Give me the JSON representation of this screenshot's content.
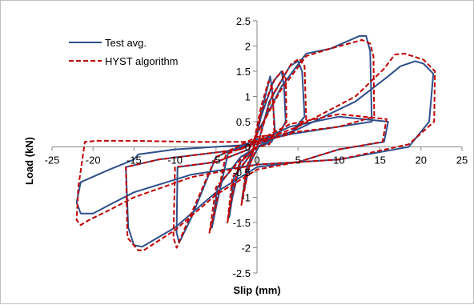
{
  "chart_data": {
    "type": "line",
    "title": "",
    "xlabel": "Slip (mm)",
    "ylabel": "Load (kN)",
    "xlim": [
      -25,
      25
    ],
    "ylim": [
      -2.5,
      2.5
    ],
    "x_ticks": [
      -25,
      -20,
      -15,
      -10,
      -5,
      0,
      5,
      10,
      15,
      20,
      25
    ],
    "y_ticks": [
      -2.5,
      -2,
      -1.5,
      -1,
      -0.5,
      0,
      0.5,
      1,
      1.5,
      2,
      2.5
    ],
    "grid": false,
    "legend_position": "top-left",
    "series": [
      {
        "name": "Test avg.",
        "color": "#2f4f8a",
        "dash": "solid",
        "loops": [
          [
            [
              -0.5,
              -0.1
            ],
            [
              -0.2,
              0.2
            ],
            [
              0.3,
              0.5
            ],
            [
              1.0,
              1.0
            ],
            [
              1.6,
              1.4
            ],
            [
              1.8,
              1.2
            ],
            [
              2.2,
              0.3
            ],
            [
              1.8,
              0.1
            ],
            [
              0.2,
              0.0
            ],
            [
              -0.8,
              -0.3
            ],
            [
              -1.5,
              -0.8
            ],
            [
              -1.8,
              -1.0
            ],
            [
              -1.2,
              -0.4
            ],
            [
              -0.5,
              -0.1
            ]
          ],
          [
            [
              -0.5,
              -0.1
            ],
            [
              0.5,
              0.6
            ],
            [
              2.0,
              1.3
            ],
            [
              3.0,
              1.5
            ],
            [
              3.3,
              1.2
            ],
            [
              3.5,
              0.5
            ],
            [
              2.5,
              0.2
            ],
            [
              0.0,
              0.0
            ],
            [
              -2.0,
              -0.3
            ],
            [
              -3.0,
              -1.0
            ],
            [
              -3.4,
              -1.4
            ],
            [
              -2.8,
              -0.6
            ],
            [
              -1.0,
              -0.2
            ],
            [
              -0.5,
              -0.1
            ]
          ],
          [
            [
              0.0,
              0.0
            ],
            [
              1.5,
              0.9
            ],
            [
              4.0,
              1.6
            ],
            [
              5.0,
              1.7
            ],
            [
              5.5,
              1.5
            ],
            [
              5.8,
              0.6
            ],
            [
              4.0,
              0.25
            ],
            [
              0.0,
              0.1
            ],
            [
              -3.5,
              -0.1
            ],
            [
              -5.0,
              -1.2
            ],
            [
              -5.5,
              -1.6
            ],
            [
              -4.8,
              -0.8
            ],
            [
              -2.0,
              -0.2
            ],
            [
              0.0,
              0.0
            ]
          ],
          [
            [
              -1.0,
              -0.05
            ],
            [
              3.0,
              1.2
            ],
            [
              6.0,
              1.85
            ],
            [
              9.0,
              1.95
            ],
            [
              12.5,
              2.2
            ],
            [
              13.3,
              2.2
            ],
            [
              13.8,
              1.9
            ],
            [
              14.0,
              0.5
            ],
            [
              10.0,
              0.4
            ],
            [
              0.0,
              0.15
            ],
            [
              -5.0,
              -0.2
            ],
            [
              -8.0,
              -1.4
            ],
            [
              -9.5,
              -1.9
            ],
            [
              -9.8,
              -1.7
            ],
            [
              -9.7,
              -0.4
            ],
            [
              -5.0,
              -0.3
            ],
            [
              -1.0,
              -0.05
            ]
          ],
          [
            [
              -2.0,
              -0.05
            ],
            [
              4.0,
              0.4
            ],
            [
              10.0,
              0.6
            ],
            [
              16.0,
              0.5
            ],
            [
              15.5,
              0.1
            ],
            [
              10.0,
              -0.05
            ],
            [
              5.0,
              -0.3
            ],
            [
              0.0,
              -0.4
            ],
            [
              -5.0,
              -0.9
            ],
            [
              -10.0,
              -1.6
            ],
            [
              -14.0,
              -1.98
            ],
            [
              -15.0,
              -1.95
            ],
            [
              -15.7,
              -1.6
            ],
            [
              -16.0,
              -0.4
            ],
            [
              -12.0,
              -0.25
            ],
            [
              -2.0,
              -0.05
            ]
          ],
          [
            [
              0.0,
              0.05
            ],
            [
              5.0,
              0.35
            ],
            [
              12.0,
              0.9
            ],
            [
              16.0,
              1.4
            ],
            [
              17.5,
              1.6
            ],
            [
              19.3,
              1.7
            ],
            [
              20.3,
              1.65
            ],
            [
              21.5,
              1.45
            ],
            [
              21.0,
              0.5
            ],
            [
              18.5,
              0.0
            ],
            [
              10.0,
              -0.25
            ],
            [
              0.0,
              -0.35
            ],
            [
              -8.0,
              -0.55
            ],
            [
              -15.0,
              -0.9
            ],
            [
              -18.0,
              -1.15
            ],
            [
              -20.0,
              -1.32
            ],
            [
              -21.5,
              -1.32
            ],
            [
              -22.0,
              -1.1
            ],
            [
              -21.5,
              -0.7
            ],
            [
              -18.0,
              -0.45
            ],
            [
              -15.0,
              -0.25
            ],
            [
              -14.5,
              -0.15
            ],
            [
              -10.0,
              -0.05
            ],
            [
              0.0,
              0.05
            ]
          ]
        ]
      },
      {
        "name": "HYST algorithm",
        "color": "#c00000",
        "dash": "dashed",
        "loops": [
          [
            [
              -0.6,
              -0.15
            ],
            [
              -0.2,
              0.25
            ],
            [
              0.5,
              0.8
            ],
            [
              1.4,
              1.3
            ],
            [
              1.9,
              1.15
            ],
            [
              2.1,
              0.3
            ],
            [
              1.5,
              0.05
            ],
            [
              0.0,
              0.0
            ],
            [
              -1.0,
              -0.4
            ],
            [
              -1.7,
              -1.0
            ],
            [
              -1.9,
              -1.15
            ],
            [
              -1.3,
              -0.4
            ],
            [
              -0.6,
              -0.15
            ]
          ],
          [
            [
              -0.5,
              -0.1
            ],
            [
              0.5,
              0.7
            ],
            [
              2.2,
              1.35
            ],
            [
              3.1,
              1.5
            ],
            [
              3.5,
              1.35
            ],
            [
              3.6,
              0.5
            ],
            [
              2.3,
              0.2
            ],
            [
              0.0,
              0.05
            ],
            [
              -2.2,
              -0.35
            ],
            [
              -3.2,
              -1.1
            ],
            [
              -3.6,
              -1.5
            ],
            [
              -3.0,
              -0.6
            ],
            [
              -1.0,
              -0.2
            ],
            [
              -0.5,
              -0.1
            ]
          ],
          [
            [
              0.0,
              0.0
            ],
            [
              1.8,
              1.0
            ],
            [
              4.2,
              1.65
            ],
            [
              5.2,
              1.75
            ],
            [
              5.8,
              1.6
            ],
            [
              6.0,
              0.55
            ],
            [
              4.0,
              0.25
            ],
            [
              0.0,
              0.1
            ],
            [
              -3.8,
              -0.15
            ],
            [
              -5.2,
              -1.3
            ],
            [
              -5.8,
              -1.7
            ],
            [
              -5.0,
              -0.8
            ],
            [
              -2.0,
              -0.25
            ],
            [
              0.0,
              0.0
            ]
          ],
          [
            [
              -1.0,
              -0.05
            ],
            [
              2.8,
              1.1
            ],
            [
              6.0,
              1.8
            ],
            [
              9.0,
              1.95
            ],
            [
              12.8,
              2.12
            ],
            [
              13.8,
              2.05
            ],
            [
              14.2,
              1.8
            ],
            [
              14.3,
              0.6
            ],
            [
              10.0,
              0.4
            ],
            [
              0.0,
              0.2
            ],
            [
              -5.0,
              -0.2
            ],
            [
              -8.5,
              -1.5
            ],
            [
              -9.8,
              -2.0
            ],
            [
              -10.2,
              -1.8
            ],
            [
              -10.0,
              -0.4
            ],
            [
              -5.0,
              -0.3
            ],
            [
              -1.0,
              -0.05
            ]
          ],
          [
            [
              -2.0,
              -0.05
            ],
            [
              4.0,
              0.45
            ],
            [
              10.0,
              0.65
            ],
            [
              15.8,
              0.55
            ],
            [
              15.3,
              0.1
            ],
            [
              10.0,
              -0.05
            ],
            [
              5.0,
              -0.3
            ],
            [
              0.0,
              -0.45
            ],
            [
              -5.0,
              -0.95
            ],
            [
              -10.0,
              -1.65
            ],
            [
              -13.8,
              -2.05
            ],
            [
              -14.5,
              -2.05
            ],
            [
              -15.8,
              -1.8
            ],
            [
              -16.0,
              -0.4
            ],
            [
              -12.0,
              -0.25
            ],
            [
              -2.0,
              -0.05
            ]
          ],
          [
            [
              0.0,
              0.1
            ],
            [
              5.0,
              0.4
            ],
            [
              12.0,
              1.0
            ],
            [
              15.5,
              1.55
            ],
            [
              16.8,
              1.83
            ],
            [
              18.0,
              1.85
            ],
            [
              20.3,
              1.73
            ],
            [
              21.7,
              1.5
            ],
            [
              21.6,
              0.5
            ],
            [
              18.5,
              0.05
            ],
            [
              10.0,
              -0.25
            ],
            [
              0.0,
              -0.35
            ],
            [
              -8.0,
              -0.6
            ],
            [
              -15.0,
              -1.0
            ],
            [
              -18.0,
              -1.25
            ],
            [
              -20.5,
              -1.45
            ],
            [
              -21.5,
              -1.55
            ],
            [
              -22.0,
              -1.45
            ],
            [
              -21.8,
              -0.8
            ],
            [
              -21.0,
              0.1
            ],
            [
              -19.5,
              0.12
            ],
            [
              -15.0,
              0.12
            ],
            [
              -8.0,
              0.1
            ],
            [
              0.0,
              0.1
            ]
          ]
        ]
      }
    ]
  }
}
